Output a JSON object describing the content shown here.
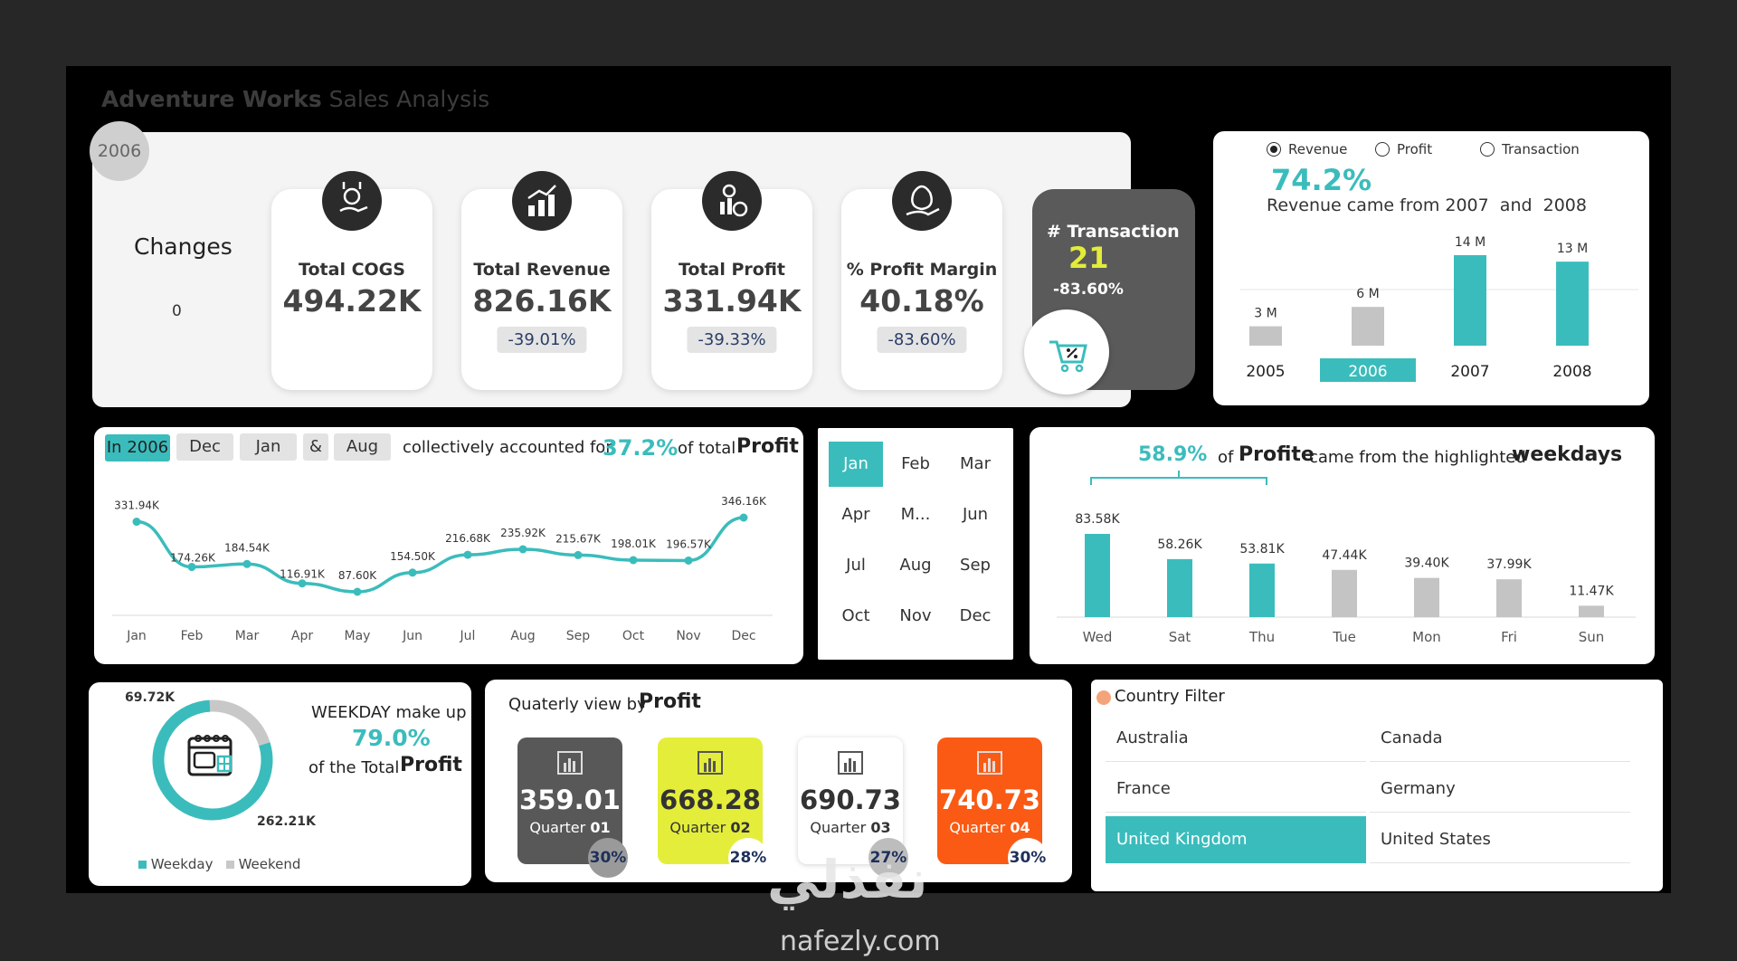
{
  "header": {
    "title_bold": "Adventure Works",
    "title_rest": " Sales Analysis",
    "year_badge": "2006"
  },
  "kpi_section": {
    "changes_label": "Changes",
    "changes_value": "0",
    "cards": [
      {
        "label": "Total COGS",
        "value": "494.22K",
        "pct": ""
      },
      {
        "label": "Total Revenue",
        "value": "826.16K",
        "pct": "-39.01%"
      },
      {
        "label": "Total Profit",
        "value": "331.94K",
        "pct": "-39.33%"
      },
      {
        "label": "% Profit Margin",
        "value": "40.18%",
        "pct": "-83.60%"
      }
    ],
    "transaction": {
      "label": "# Transaction",
      "value": "21",
      "pct": "-83.60%"
    }
  },
  "year_chart": {
    "radios": [
      {
        "label": "Revenue",
        "checked": true
      },
      {
        "label": "Profit",
        "checked": false
      },
      {
        "label": "Transaction",
        "checked": false
      }
    ],
    "pct": "74.2%",
    "caption": "Revenue came from 2007  and  2008",
    "chart_data": {
      "type": "bar",
      "categories": [
        "2005",
        "2006",
        "2007",
        "2008"
      ],
      "values": [
        3,
        6,
        14,
        13
      ],
      "labels": [
        "3 M",
        "6 M",
        "14 M",
        "13 M"
      ],
      "highlight": [
        "2007",
        "2008"
      ],
      "selected": "2006"
    }
  },
  "monthly": {
    "chip_year": "In 2006",
    "chip_m1": "Dec",
    "chip_m2": "Jan",
    "chip_amp": "&",
    "chip_m3": "Aug",
    "text1": "collectively accounted for",
    "pct": "37.2%",
    "text2": "of total",
    "text3": "Profit",
    "chart_data": {
      "type": "line",
      "categories": [
        "Jan",
        "Feb",
        "Mar",
        "Apr",
        "May",
        "Jun",
        "Jul",
        "Aug",
        "Sep",
        "Oct",
        "Nov",
        "Dec"
      ],
      "values": [
        331.94,
        174.26,
        184.54,
        116.91,
        87.6,
        154.5,
        216.68,
        235.92,
        215.67,
        198.01,
        196.57,
        346.16
      ],
      "labels": [
        "331.94K",
        "174.26K",
        "184.54K",
        "116.91K",
        "87.60K",
        "154.50K",
        "216.68K",
        "235.92K",
        "215.67K",
        "198.01K",
        "196.57K",
        "346.16K"
      ]
    }
  },
  "month_filter": {
    "months": [
      "Jan",
      "Feb",
      "Mar",
      "Apr",
      "M...",
      "Jun",
      "Jul",
      "Aug",
      "Sep",
      "Oct",
      "Nov",
      "Dec"
    ],
    "selected": "Jan"
  },
  "weekday": {
    "pct": "58.9%",
    "text1": "of",
    "text2": "Profite",
    "text3": "came from the highlighted",
    "text4": "weekdays",
    "chart_data": {
      "type": "bar",
      "categories": [
        "Wed",
        "Sat",
        "Thu",
        "Tue",
        "Mon",
        "Fri",
        "Sun"
      ],
      "values": [
        83.58,
        58.26,
        53.81,
        47.44,
        39.4,
        37.99,
        11.47
      ],
      "labels": [
        "83.58K",
        "58.26K",
        "53.81K",
        "47.44K",
        "39.40K",
        "37.99K",
        "11.47K"
      ],
      "highlight": [
        "Wed",
        "Sat",
        "Thu"
      ]
    }
  },
  "donut": {
    "top_label": "69.72K",
    "bottom_label": "262.21K",
    "line1": "WEEKDAY make up",
    "pct": "79.0%",
    "line2": "of the Total",
    "line3": "Profit",
    "legend": [
      {
        "label": "Weekday",
        "color": "#3bbcbc"
      },
      {
        "label": "Weekend",
        "color": "#c8c8c8"
      }
    ],
    "chart_data": {
      "type": "pie",
      "categories": [
        "Weekday",
        "Weekend"
      ],
      "values": [
        262.21,
        69.72
      ]
    }
  },
  "quarterly": {
    "title1": "Quaterly view by",
    "title2": "Profit",
    "quarters": [
      {
        "value": "359.01",
        "label": "Quarter ",
        "num": "01",
        "pct": "30%",
        "bg": "#585858",
        "fg": "#ffffff"
      },
      {
        "value": "668.28",
        "label": "Quarter ",
        "num": "02",
        "pct": "28%",
        "bg": "#e4ee3a",
        "fg": "#333333"
      },
      {
        "value": "690.73",
        "label": "Quarter ",
        "num": "03",
        "pct": "27%",
        "bg": "#ffffff",
        "fg": "#333333"
      },
      {
        "value": "740.73",
        "label": "Quarter ",
        "num": "04",
        "pct": "30%",
        "bg": "#fa5a14",
        "fg": "#ffffff"
      }
    ]
  },
  "country_filter": {
    "title": "Country Filter",
    "countries": [
      "Australia",
      "Canada",
      "France",
      "Germany",
      "United Kingdom",
      "United States"
    ],
    "selected": "United Kingdom"
  },
  "watermark": {
    "arabic": "نفذلي",
    "site": "nafezly.com"
  },
  "colors": {
    "teal": "#3bbcbc",
    "grey": "#c4c4c4",
    "dark": "#585858"
  }
}
